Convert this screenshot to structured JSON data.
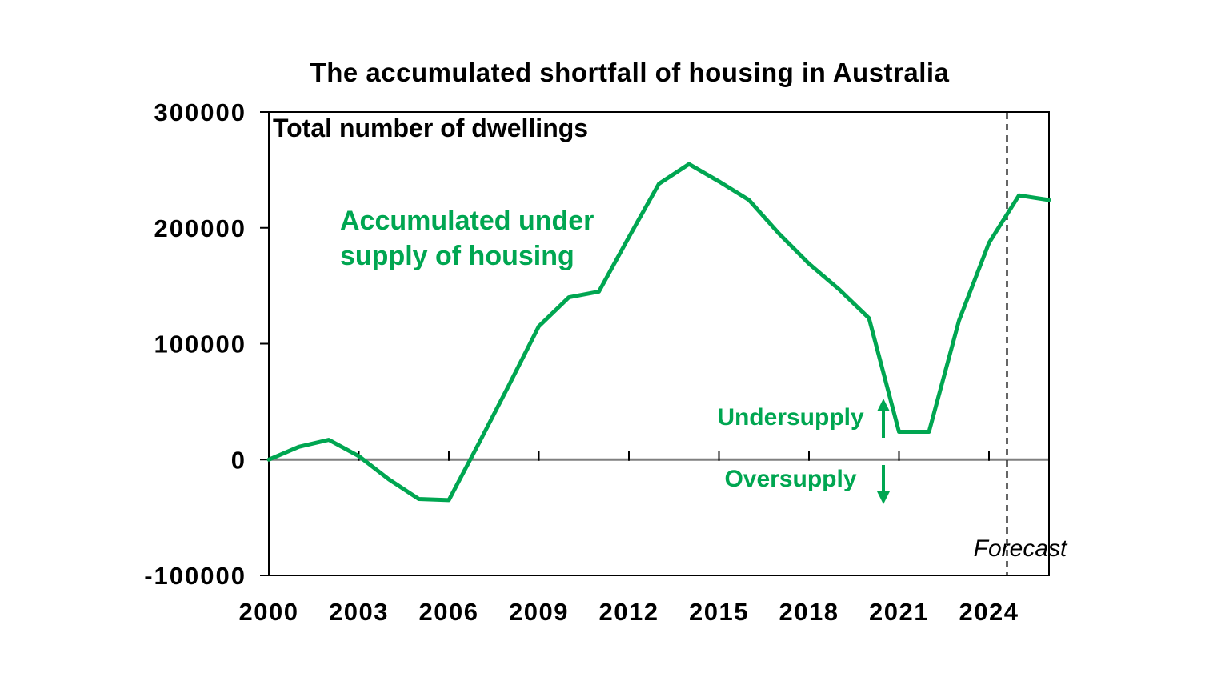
{
  "chart_data": {
    "type": "line",
    "title": "The accumulated shortfall of housing in Australia",
    "inner_label": "Total number of dwellings",
    "series_annotation": "Accumulated under\nsupply of housing",
    "forecast_label": "Forecast",
    "annotations": {
      "undersupply": "Undersupply",
      "oversupply": "Oversupply"
    },
    "series": [
      {
        "name": "Accumulated under supply of housing",
        "x": [
          2000,
          2001,
          2002,
          2003,
          2004,
          2005,
          2006,
          2007,
          2008,
          2009,
          2010,
          2011,
          2012,
          2013,
          2014,
          2015,
          2016,
          2017,
          2018,
          2019,
          2020,
          2021,
          2022,
          2023,
          2024,
          2025,
          2026
        ],
        "values": [
          0,
          11000,
          17000,
          3000,
          -17000,
          -34000,
          -35000,
          14000,
          64000,
          115000,
          140000,
          145000,
          192000,
          238000,
          255000,
          240000,
          224000,
          195000,
          169000,
          147000,
          122000,
          24000,
          24000,
          120000,
          187000,
          228000,
          224000
        ]
      }
    ],
    "xlim": [
      2000,
      2026
    ],
    "ylim": [
      -100000,
      300000
    ],
    "yticks": [
      300000,
      200000,
      100000,
      0,
      -100000
    ],
    "xticks": [
      2000,
      2003,
      2006,
      2009,
      2012,
      2015,
      2018,
      2021,
      2024
    ],
    "forecast_x": 2024.6,
    "grid": false,
    "legend_position": "none",
    "colors": {
      "line": "#00A651",
      "zero_line": "#808080",
      "frame": "#000000",
      "forecast_line": "#333333",
      "text": "#000000"
    }
  }
}
